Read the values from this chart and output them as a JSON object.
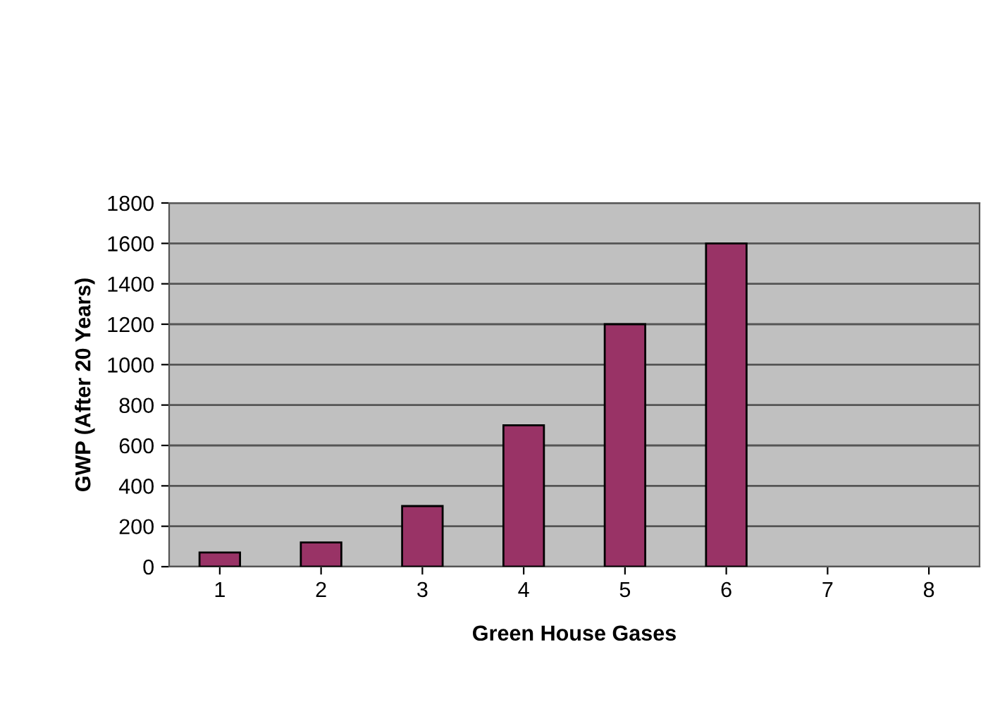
{
  "chart_data": {
    "type": "bar",
    "xlabel": "Green House Gases",
    "ylabel": "GWP (After 20 Years)",
    "categories": [
      "1",
      "2",
      "3",
      "4",
      "5",
      "6",
      "7",
      "8"
    ],
    "values": [
      70,
      120,
      300,
      700,
      1200,
      1600,
      null,
      null
    ],
    "color": "#993366",
    "ylim": [
      0,
      1800
    ],
    "yticks": [
      0,
      200,
      400,
      600,
      800,
      1000,
      1200,
      1400,
      1600,
      1800
    ],
    "grid": "y",
    "legend": false
  }
}
